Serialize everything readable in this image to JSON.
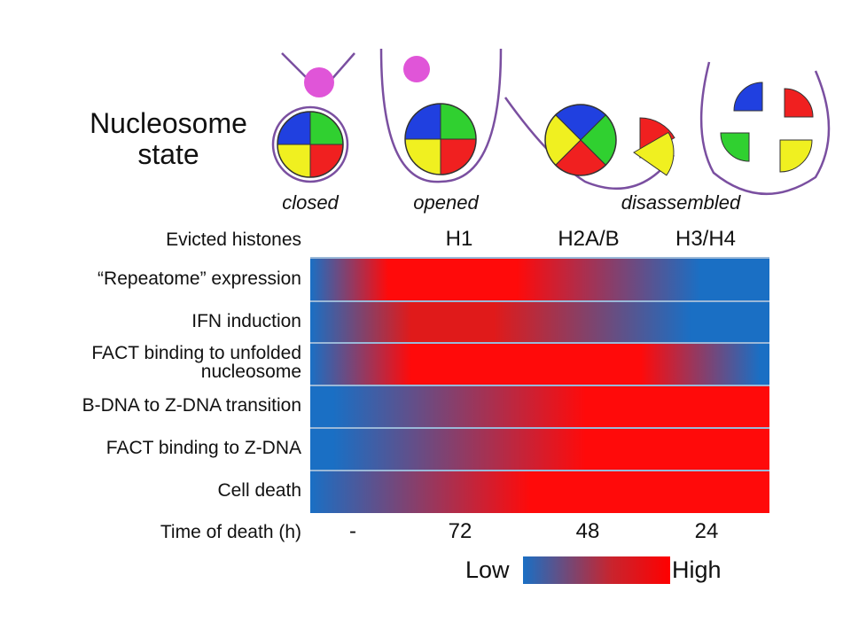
{
  "nucleosome_state": {
    "label": "Nucleosome state",
    "states": [
      "closed",
      "opened",
      "disassembled"
    ]
  },
  "evicted_histones": {
    "label": "Evicted histones",
    "items": [
      "H1",
      "H2A/B",
      "H3/H4"
    ]
  },
  "rows": [
    "“Repeatome” expression",
    "IFN induction",
    "FACT binding to unfolded nucleosome",
    "B-DNA to Z-DNA transition",
    "FACT binding to Z-DNA",
    "Cell death"
  ],
  "time_of_death": {
    "label": "Time of death (h)",
    "values": [
      "-",
      "72",
      "48",
      "24"
    ]
  },
  "legend": {
    "low": "Low",
    "high": "High"
  }
}
